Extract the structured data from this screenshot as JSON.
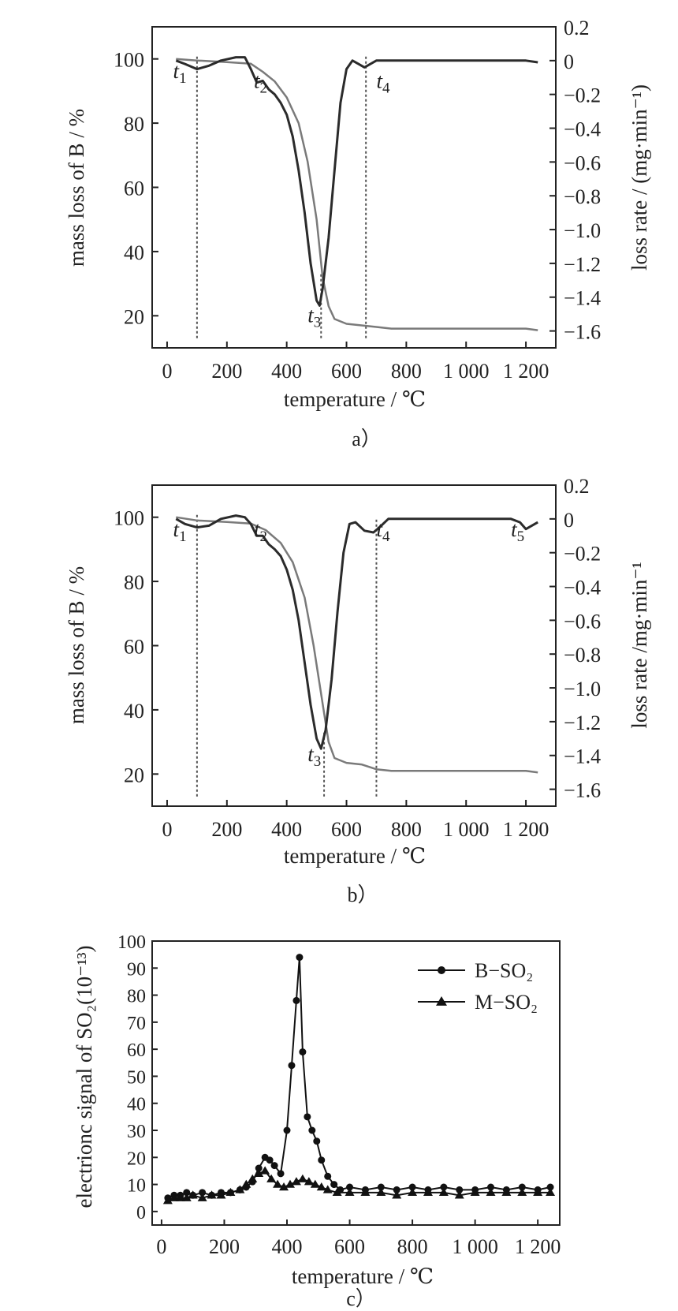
{
  "chart_data": [
    {
      "type": "line",
      "caption": "a）",
      "xlabel": "temperature / ℃",
      "ylabel": "mass loss of B / %",
      "y2label": "loss rate / (mg·min⁻¹)",
      "xlim": [
        -50,
        1300
      ],
      "ylim": [
        10,
        110
      ],
      "y2lim": [
        -1.7,
        0.2
      ],
      "xticks": [
        "0",
        "200",
        "400",
        "600",
        "800",
        "1 000",
        "1 200"
      ],
      "yticks": [
        "20",
        "40",
        "60",
        "80",
        "100"
      ],
      "y2ticks": [
        "0.2",
        "0",
        "−0.2",
        "−0.4",
        "−0.6",
        "−0.8",
        "−1.0",
        "−1.2",
        "−1.4",
        "−1.6"
      ],
      "markers": [
        {
          "label": "t1",
          "x": 100,
          "y_from": 13,
          "y_to": 101,
          "label_pos": [
            20,
            94
          ]
        },
        {
          "label": "t2",
          "label_pos": [
            290,
            91
          ]
        },
        {
          "label": "t3",
          "x": 515,
          "y_from": 13,
          "y_to": 33,
          "label_pos": [
            470,
            18
          ]
        },
        {
          "label": "t4",
          "x": 665,
          "y_from": 13,
          "y_to": 101,
          "label_pos": [
            700,
            91
          ]
        }
      ],
      "series": [
        {
          "role": "mass_loss",
          "axis": "left",
          "color": "#7a7a7a",
          "x": [
            30,
            100,
            200,
            280,
            320,
            360,
            400,
            440,
            470,
            500,
            520,
            540,
            560,
            600,
            650,
            700,
            750,
            800,
            900,
            1000,
            1100,
            1200,
            1240
          ],
          "y": [
            100,
            99.5,
            99,
            98.5,
            96,
            93,
            88,
            80,
            68,
            50,
            32,
            23,
            19,
            17.5,
            17,
            16.5,
            16,
            16,
            16,
            16,
            16,
            16,
            15.5
          ]
        },
        {
          "role": "loss_rate",
          "axis": "right",
          "color": "#2b2b2b",
          "x": [
            30,
            60,
            100,
            140,
            180,
            230,
            260,
            280,
            300,
            320,
            340,
            360,
            380,
            400,
            420,
            440,
            460,
            480,
            500,
            510,
            520,
            540,
            560,
            580,
            600,
            620,
            640,
            660,
            680,
            700,
            800,
            900,
            1000,
            1100,
            1200,
            1240
          ],
          "y": [
            0,
            -0.02,
            -0.05,
            -0.03,
            0,
            0.02,
            0.02,
            -0.05,
            -0.13,
            -0.12,
            -0.17,
            -0.2,
            -0.25,
            -0.32,
            -0.45,
            -0.65,
            -0.9,
            -1.2,
            -1.42,
            -1.45,
            -1.35,
            -1.05,
            -0.65,
            -0.25,
            -0.05,
            0,
            -0.02,
            -0.04,
            -0.02,
            0,
            0,
            0,
            0,
            0,
            0,
            -0.01
          ]
        }
      ]
    },
    {
      "type": "line",
      "caption": "b）",
      "xlabel": "temperature / ℃",
      "ylabel": "mass loss of B / %",
      "y2label": "loss rate /mg·min⁻¹",
      "xlim": [
        -50,
        1300
      ],
      "ylim": [
        10,
        110
      ],
      "y2lim": [
        -1.7,
        0.2
      ],
      "xticks": [
        "0",
        "200",
        "400",
        "600",
        "800",
        "1 000",
        "1 200"
      ],
      "yticks": [
        "20",
        "40",
        "60",
        "80",
        "100"
      ],
      "y2ticks": [
        "0.2",
        "0",
        "−0.2",
        "−0.4",
        "−0.6",
        "−0.8",
        "−1.0",
        "−1.2",
        "−1.4",
        "−1.6"
      ],
      "markers": [
        {
          "label": "t1",
          "x": 100,
          "y_from": 13,
          "y_to": 101,
          "label_pos": [
            20,
            94
          ]
        },
        {
          "label": "t2",
          "label_pos": [
            290,
            94
          ]
        },
        {
          "label": "t3",
          "x": 525,
          "y_from": 13,
          "y_to": 33,
          "label_pos": [
            470,
            24
          ]
        },
        {
          "label": "t4",
          "x": 700,
          "y_from": 13,
          "y_to": 100,
          "label_pos": [
            700,
            94
          ]
        },
        {
          "label": "t5",
          "label_pos": [
            1150,
            94
          ]
        }
      ],
      "series": [
        {
          "role": "mass_loss",
          "axis": "left",
          "color": "#7a7a7a",
          "x": [
            30,
            100,
            200,
            280,
            330,
            380,
            420,
            460,
            490,
            520,
            540,
            560,
            600,
            650,
            700,
            750,
            800,
            900,
            1000,
            1100,
            1200,
            1240
          ],
          "y": [
            100,
            99,
            98.5,
            98,
            96,
            92,
            86,
            75,
            60,
            42,
            30,
            25,
            23.5,
            23,
            21.5,
            21,
            21,
            21,
            21,
            21,
            21,
            20.5
          ]
        },
        {
          "role": "loss_rate",
          "axis": "right",
          "color": "#2b2b2b",
          "x": [
            30,
            60,
            100,
            140,
            180,
            230,
            260,
            280,
            300,
            320,
            340,
            360,
            380,
            400,
            420,
            440,
            460,
            480,
            500,
            515,
            530,
            550,
            570,
            590,
            610,
            630,
            660,
            690,
            710,
            740,
            800,
            900,
            1000,
            1100,
            1150,
            1180,
            1200,
            1240
          ],
          "y": [
            0,
            -0.03,
            -0.05,
            -0.04,
            0,
            0.02,
            0.01,
            -0.03,
            -0.1,
            -0.1,
            -0.15,
            -0.18,
            -0.22,
            -0.3,
            -0.42,
            -0.6,
            -0.85,
            -1.1,
            -1.3,
            -1.36,
            -1.25,
            -0.95,
            -0.55,
            -0.2,
            -0.03,
            -0.02,
            -0.07,
            -0.08,
            -0.05,
            0,
            0,
            0,
            0,
            0,
            0,
            -0.02,
            -0.06,
            -0.02
          ]
        }
      ]
    },
    {
      "type": "scatter",
      "caption": "c）",
      "xlabel": "temperature / ℃",
      "ylabel": "electrionc signal of SO₂(10⁻¹³)",
      "xlim": [
        -30,
        1270
      ],
      "ylim": [
        -5,
        100
      ],
      "xticks": [
        "0",
        "200",
        "400",
        "600",
        "800",
        "1 000",
        "1 200"
      ],
      "yticks": [
        "0",
        "10",
        "20",
        "30",
        "40",
        "50",
        "60",
        "70",
        "80",
        "90",
        "100"
      ],
      "legend": {
        "position": "top-right",
        "entries": [
          {
            "name": "B−SO₂",
            "marker": "circle"
          },
          {
            "name": "M−SO₂",
            "marker": "triangle"
          }
        ]
      },
      "series": [
        {
          "name": "B−SO₂",
          "marker": "circle",
          "color": "#111111",
          "x": [
            20,
            40,
            60,
            80,
            100,
            130,
            160,
            190,
            220,
            250,
            270,
            290,
            310,
            330,
            345,
            360,
            380,
            400,
            415,
            430,
            440,
            450,
            465,
            480,
            495,
            510,
            530,
            550,
            570,
            600,
            650,
            700,
            750,
            800,
            850,
            900,
            950,
            1000,
            1050,
            1100,
            1150,
            1200,
            1240
          ],
          "y": [
            5,
            6,
            6,
            7,
            6,
            7,
            6,
            7,
            7,
            8,
            9,
            11,
            16,
            20,
            19,
            17,
            14,
            30,
            54,
            78,
            94,
            59,
            35,
            30,
            26,
            19,
            13,
            10,
            8,
            9,
            8,
            9,
            8,
            9,
            8,
            9,
            8,
            8,
            9,
            8,
            9,
            8,
            9
          ]
        },
        {
          "name": "M−SO₂",
          "marker": "triangle",
          "color": "#111111",
          "x": [
            20,
            40,
            60,
            80,
            100,
            130,
            160,
            190,
            220,
            250,
            270,
            290,
            310,
            330,
            350,
            370,
            390,
            410,
            430,
            450,
            470,
            490,
            510,
            530,
            560,
            600,
            650,
            700,
            750,
            800,
            850,
            900,
            950,
            1000,
            1050,
            1100,
            1150,
            1200,
            1240
          ],
          "y": [
            4,
            5,
            5,
            5,
            6,
            5,
            6,
            6,
            7,
            8,
            10,
            12,
            14,
            15,
            12,
            10,
            9,
            10,
            11,
            12,
            11,
            10,
            9,
            8,
            7,
            7,
            7,
            7,
            6,
            7,
            7,
            7,
            6,
            7,
            7,
            7,
            7,
            7,
            7
          ]
        }
      ]
    }
  ]
}
